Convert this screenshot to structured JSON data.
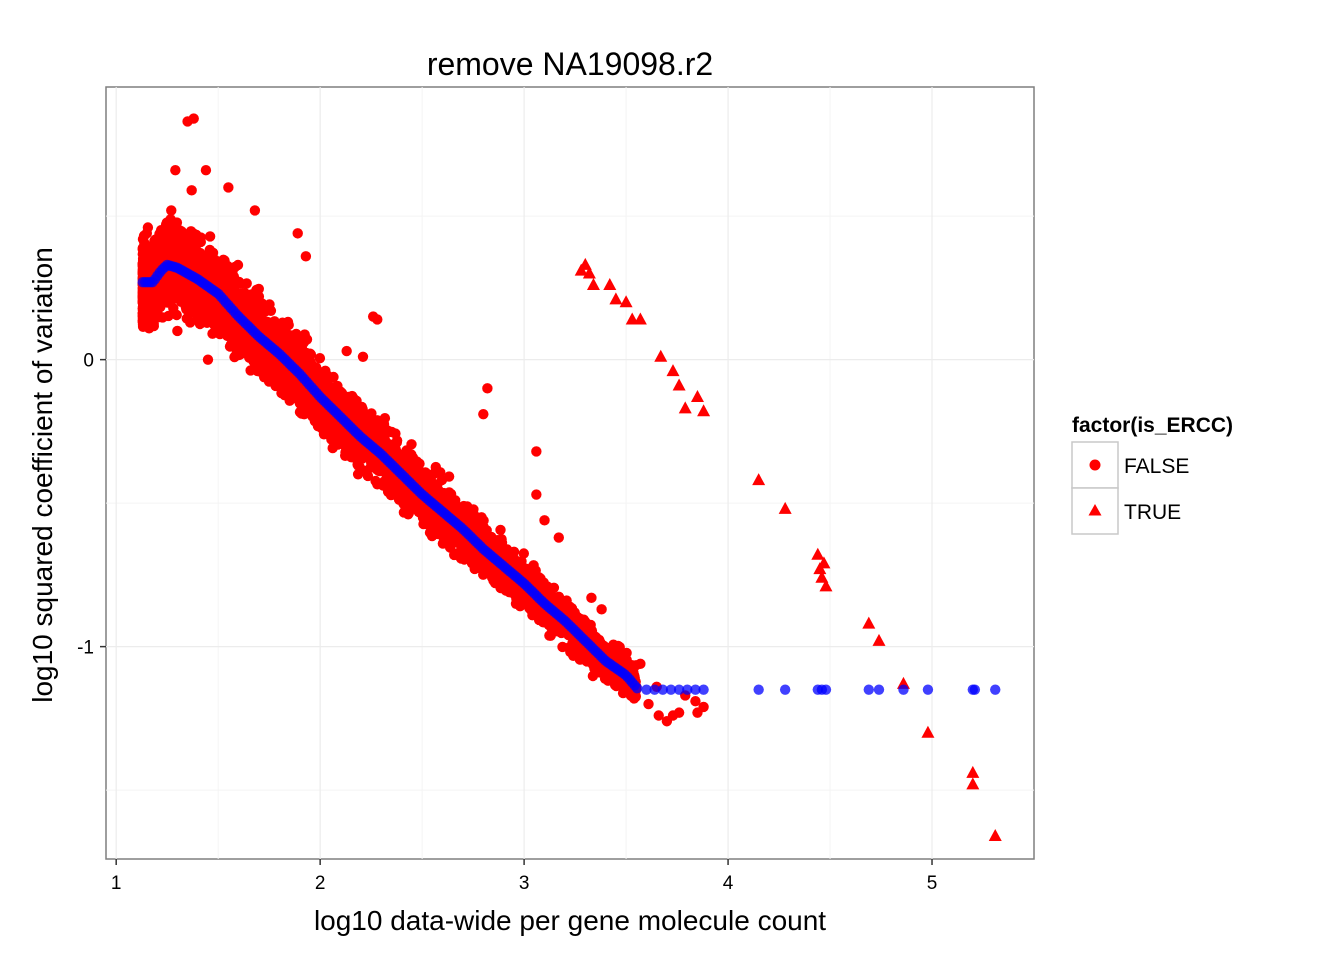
{
  "chart_data": {
    "type": "scatter",
    "title": "remove NA19098.r2",
    "xlabel": "log10 data-wide per gene molecule count",
    "ylabel": "log10 squared coefficient of variation",
    "xlim": [
      0.95,
      5.5
    ],
    "ylim": [
      -1.74,
      0.95
    ],
    "x_ticks": [
      1,
      2,
      3,
      4,
      5
    ],
    "y_ticks": [
      -1,
      0
    ],
    "grid": true,
    "legend": {
      "title": "factor(is_ERCC)",
      "position": "right",
      "entries": [
        {
          "label": "FALSE",
          "shape": "circle",
          "color": "#ff0000"
        },
        {
          "label": "TRUE",
          "shape": "triangle",
          "color": "#ff0000"
        }
      ]
    },
    "series": [
      {
        "name": "FALSE",
        "shape": "circle",
        "color": "#ff0000",
        "description_bulk": "dense cloud of several thousand genes following the fitted trend, spread about ±0.15 around it",
        "points": [
          [
            1.35,
            0.83
          ],
          [
            1.38,
            0.84
          ],
          [
            1.44,
            0.66
          ],
          [
            1.29,
            0.66
          ],
          [
            1.37,
            0.59
          ],
          [
            1.68,
            0.52
          ],
          [
            1.89,
            0.44
          ],
          [
            1.15,
            0.44
          ],
          [
            1.27,
            0.52
          ],
          [
            1.55,
            0.6
          ],
          [
            1.93,
            0.36
          ],
          [
            2.26,
            0.15
          ],
          [
            2.28,
            0.14
          ],
          [
            2.13,
            0.03
          ],
          [
            2.21,
            0.01
          ],
          [
            2.82,
            -0.1
          ],
          [
            2.8,
            -0.19
          ],
          [
            3.06,
            -0.32
          ],
          [
            3.06,
            -0.47
          ],
          [
            3.1,
            -0.56
          ],
          [
            3.17,
            -0.62
          ],
          [
            3.33,
            -0.83
          ],
          [
            3.38,
            -0.87
          ],
          [
            3.52,
            -1.07
          ],
          [
            3.57,
            -1.06
          ],
          [
            3.65,
            -1.14
          ],
          [
            3.66,
            -1.24
          ],
          [
            3.73,
            -1.24
          ],
          [
            3.76,
            -1.23
          ],
          [
            3.85,
            -1.23
          ],
          [
            3.61,
            -1.2
          ],
          [
            3.7,
            -1.26
          ],
          [
            3.84,
            -1.19
          ],
          [
            3.79,
            -1.17
          ],
          [
            3.46,
            -1.06
          ],
          [
            3.88,
            -1.21
          ],
          [
            3.31,
            -0.94
          ],
          [
            3.53,
            -1.1
          ],
          [
            1.3,
            0.1
          ],
          [
            1.45,
            0.0
          ]
        ]
      },
      {
        "name": "TRUE",
        "shape": "triangle",
        "color": "#ff0000",
        "points": [
          [
            3.28,
            0.31
          ],
          [
            3.3,
            0.33
          ],
          [
            3.32,
            0.3
          ],
          [
            3.34,
            0.26
          ],
          [
            3.42,
            0.26
          ],
          [
            3.45,
            0.21
          ],
          [
            3.5,
            0.2
          ],
          [
            3.53,
            0.14
          ],
          [
            3.57,
            0.14
          ],
          [
            3.67,
            0.01
          ],
          [
            3.73,
            -0.04
          ],
          [
            3.76,
            -0.09
          ],
          [
            3.79,
            -0.17
          ],
          [
            3.85,
            -0.13
          ],
          [
            3.88,
            -0.18
          ],
          [
            4.15,
            -0.42
          ],
          [
            4.28,
            -0.52
          ],
          [
            4.44,
            -0.68
          ],
          [
            4.47,
            -0.71
          ],
          [
            4.45,
            -0.73
          ],
          [
            4.46,
            -0.76
          ],
          [
            4.48,
            -0.79
          ],
          [
            4.69,
            -0.92
          ],
          [
            4.74,
            -0.98
          ],
          [
            4.86,
            -1.13
          ],
          [
            4.98,
            -1.3
          ],
          [
            5.2,
            -1.44
          ],
          [
            5.2,
            -1.48
          ],
          [
            5.31,
            -1.66
          ]
        ]
      },
      {
        "name": "",
        "shape": "circle",
        "color": "#0000ff",
        "description": "fitted trend (blue dots)",
        "points": [
          [
            1.13,
            0.27
          ],
          [
            1.18,
            0.27
          ],
          [
            1.22,
            0.31
          ],
          [
            1.25,
            0.33
          ],
          [
            1.3,
            0.32
          ],
          [
            1.4,
            0.28
          ],
          [
            1.5,
            0.23
          ],
          [
            1.6,
            0.15
          ],
          [
            1.7,
            0.08
          ],
          [
            1.8,
            0.02
          ],
          [
            1.9,
            -0.05
          ],
          [
            2.0,
            -0.13
          ],
          [
            2.1,
            -0.2
          ],
          [
            2.2,
            -0.27
          ],
          [
            2.3,
            -0.33
          ],
          [
            2.4,
            -0.4
          ],
          [
            2.5,
            -0.47
          ],
          [
            2.6,
            -0.53
          ],
          [
            2.7,
            -0.59
          ],
          [
            2.8,
            -0.66
          ],
          [
            2.9,
            -0.72
          ],
          [
            3.0,
            -0.78
          ],
          [
            3.1,
            -0.85
          ],
          [
            3.2,
            -0.91
          ],
          [
            3.3,
            -0.98
          ],
          [
            3.4,
            -1.05
          ],
          [
            3.5,
            -1.1
          ],
          [
            3.56,
            -1.15
          ],
          [
            3.6,
            -1.15
          ],
          [
            3.64,
            -1.15
          ],
          [
            3.68,
            -1.15
          ],
          [
            3.72,
            -1.15
          ],
          [
            3.76,
            -1.15
          ],
          [
            3.8,
            -1.15
          ],
          [
            3.84,
            -1.15
          ],
          [
            3.88,
            -1.15
          ],
          [
            4.15,
            -1.15
          ],
          [
            4.28,
            -1.15
          ],
          [
            4.44,
            -1.15
          ],
          [
            4.46,
            -1.15
          ],
          [
            4.48,
            -1.15
          ],
          [
            4.69,
            -1.15
          ],
          [
            4.74,
            -1.15
          ],
          [
            4.86,
            -1.15
          ],
          [
            4.98,
            -1.15
          ],
          [
            5.2,
            -1.15
          ],
          [
            5.21,
            -1.15
          ],
          [
            5.31,
            -1.15
          ]
        ]
      }
    ]
  }
}
